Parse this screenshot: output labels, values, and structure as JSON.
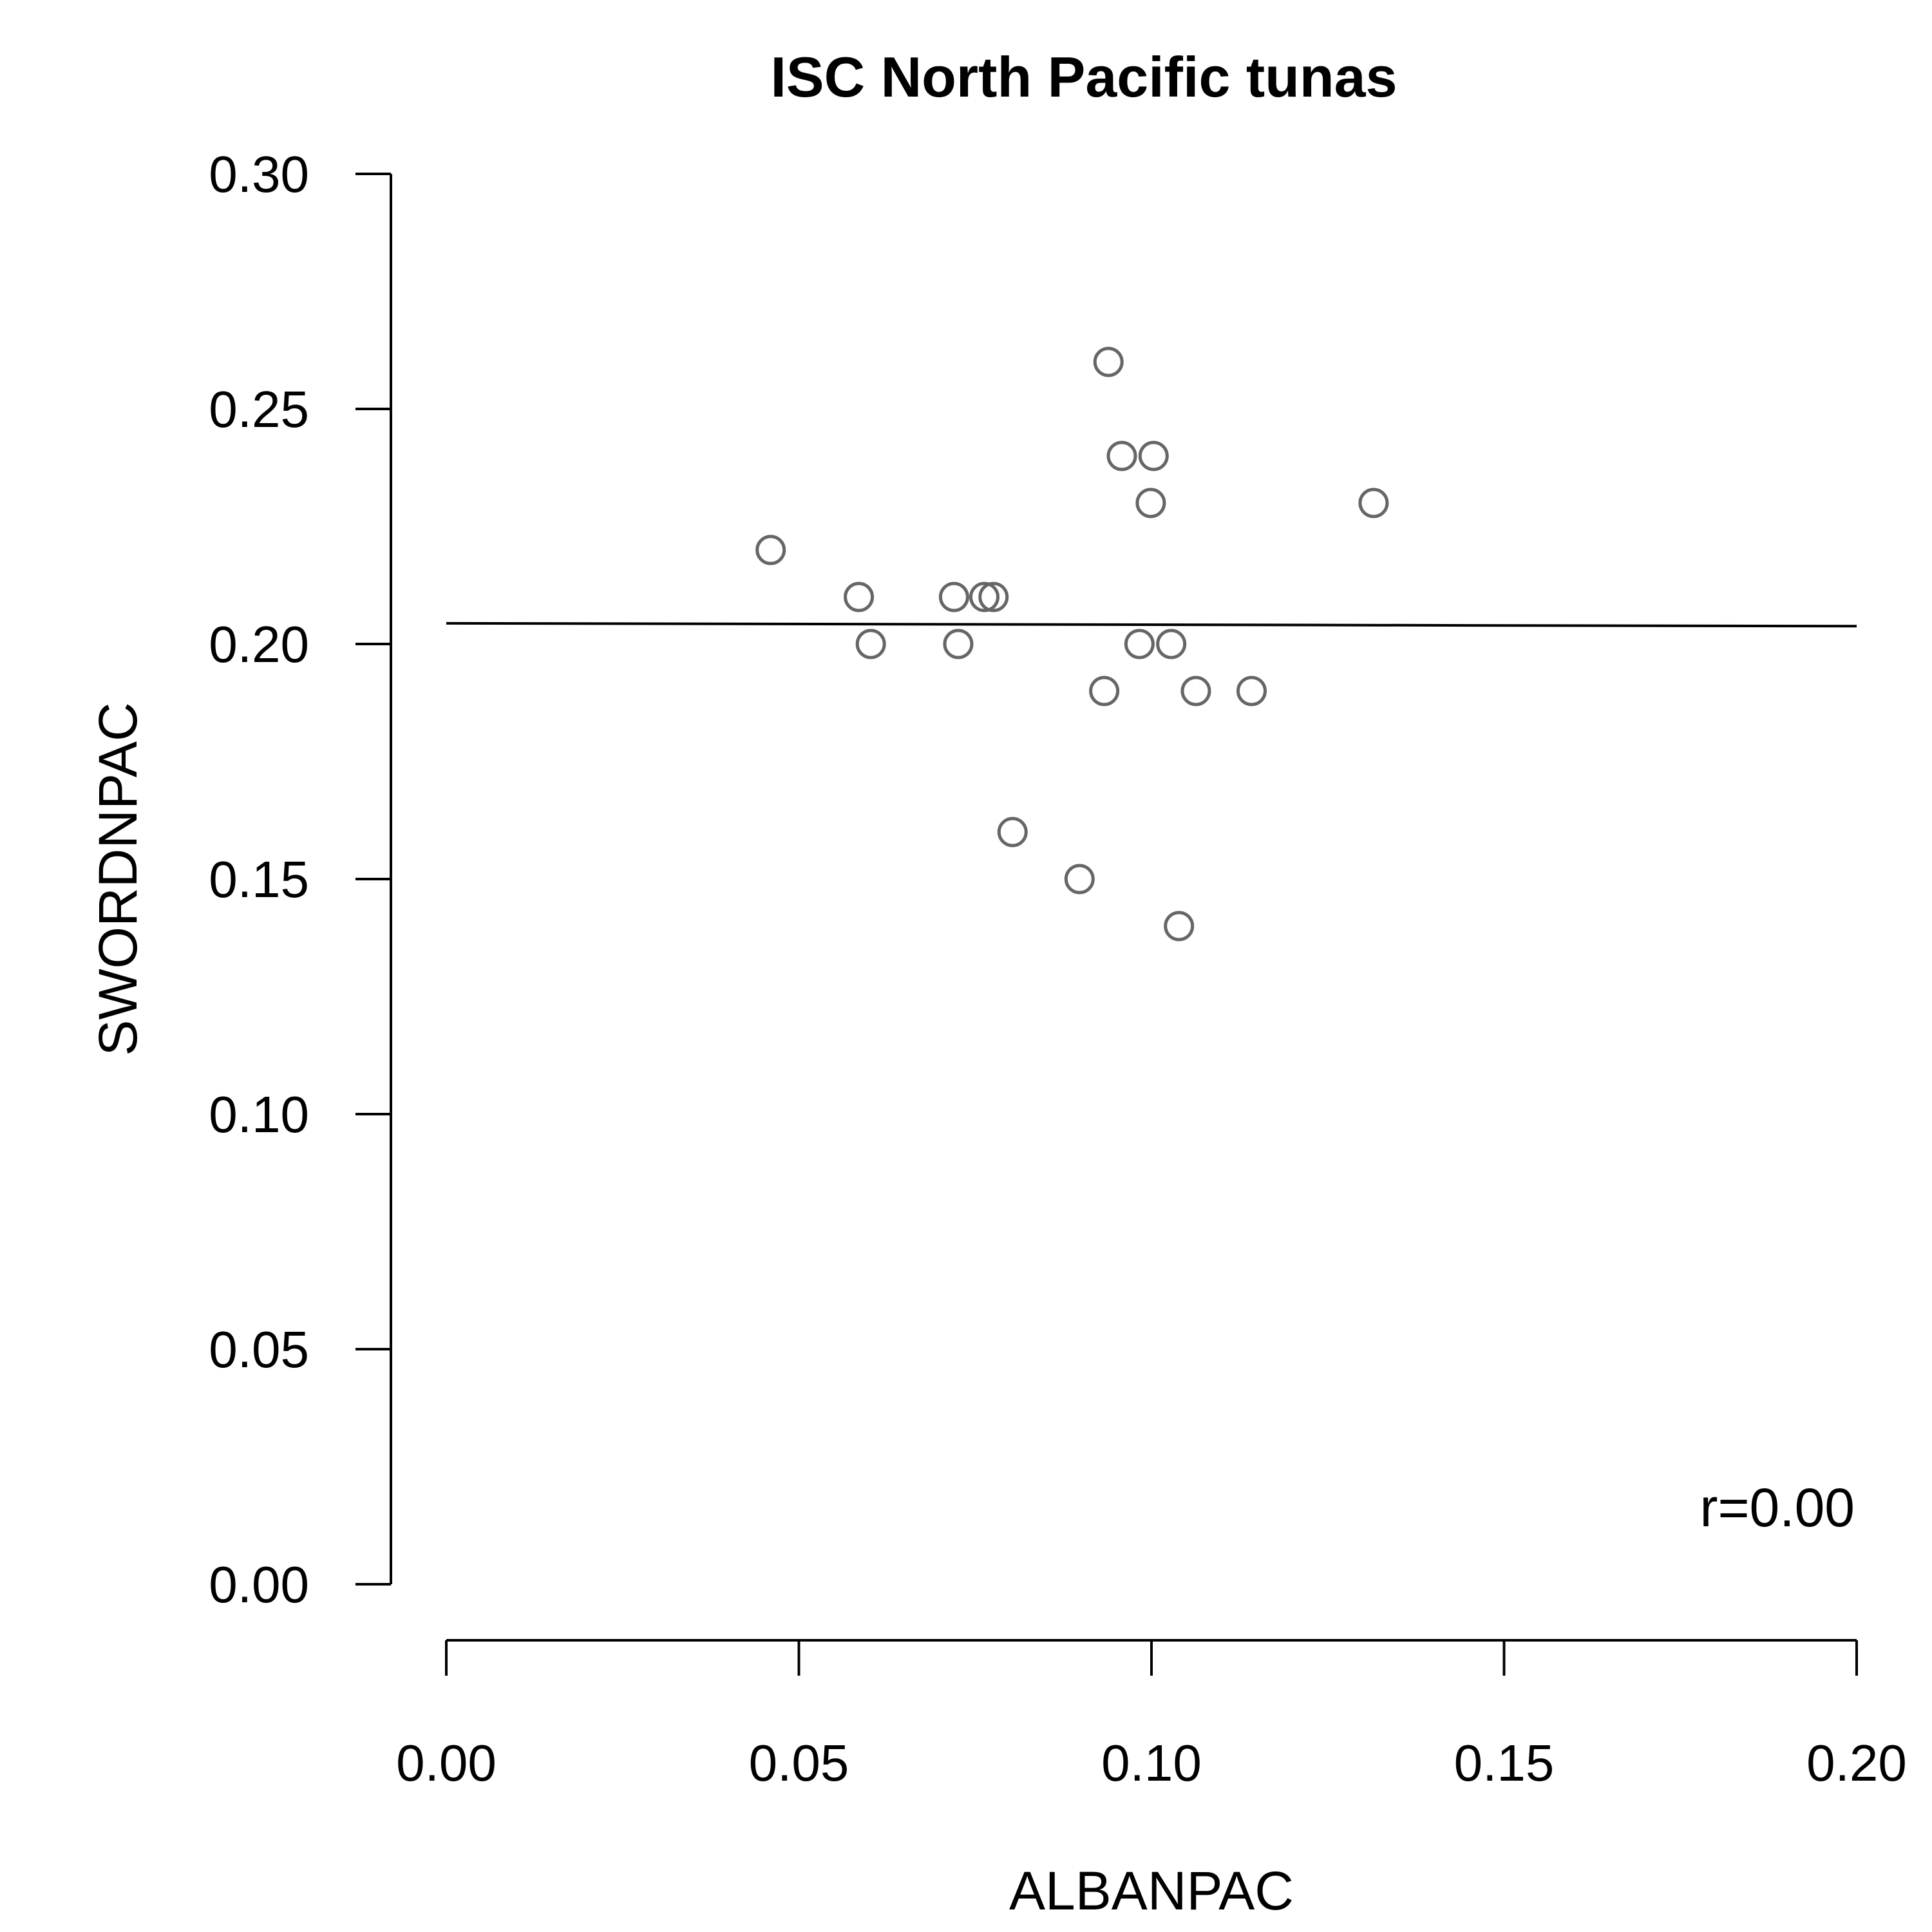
{
  "chart_data": {
    "type": "scatter",
    "title": "ISC North Pacific tunas",
    "xlabel": "ALBANPAC",
    "ylabel": "SWORDNPAC",
    "xlim": [
      0.0,
      0.2
    ],
    "ylim": [
      0.0,
      0.3
    ],
    "x_ticks": [
      "0.00",
      "0.05",
      "0.10",
      "0.15",
      "0.20"
    ],
    "y_ticks": [
      "0.00",
      "0.05",
      "0.10",
      "0.15",
      "0.20",
      "0.25",
      "0.30"
    ],
    "grid": false,
    "annotation": "r=0.00",
    "point_color": "#666666",
    "points": [
      {
        "x": 0.046,
        "y": 0.22
      },
      {
        "x": 0.0585,
        "y": 0.21
      },
      {
        "x": 0.0602,
        "y": 0.2
      },
      {
        "x": 0.072,
        "y": 0.21
      },
      {
        "x": 0.0726,
        "y": 0.2
      },
      {
        "x": 0.0763,
        "y": 0.21
      },
      {
        "x": 0.0776,
        "y": 0.21
      },
      {
        "x": 0.0803,
        "y": 0.16
      },
      {
        "x": 0.0898,
        "y": 0.15
      },
      {
        "x": 0.0933,
        "y": 0.19
      },
      {
        "x": 0.0939,
        "y": 0.26
      },
      {
        "x": 0.0958,
        "y": 0.24
      },
      {
        "x": 0.0983,
        "y": 0.2
      },
      {
        "x": 0.0999,
        "y": 0.23
      },
      {
        "x": 0.1003,
        "y": 0.24
      },
      {
        "x": 0.1028,
        "y": 0.2
      },
      {
        "x": 0.1039,
        "y": 0.14
      },
      {
        "x": 0.1063,
        "y": 0.19
      },
      {
        "x": 0.1142,
        "y": 0.19
      },
      {
        "x": 0.1315,
        "y": 0.23
      }
    ],
    "fit_line": {
      "x": [
        0.0,
        0.2
      ],
      "y": [
        0.2044,
        0.2038
      ]
    }
  }
}
